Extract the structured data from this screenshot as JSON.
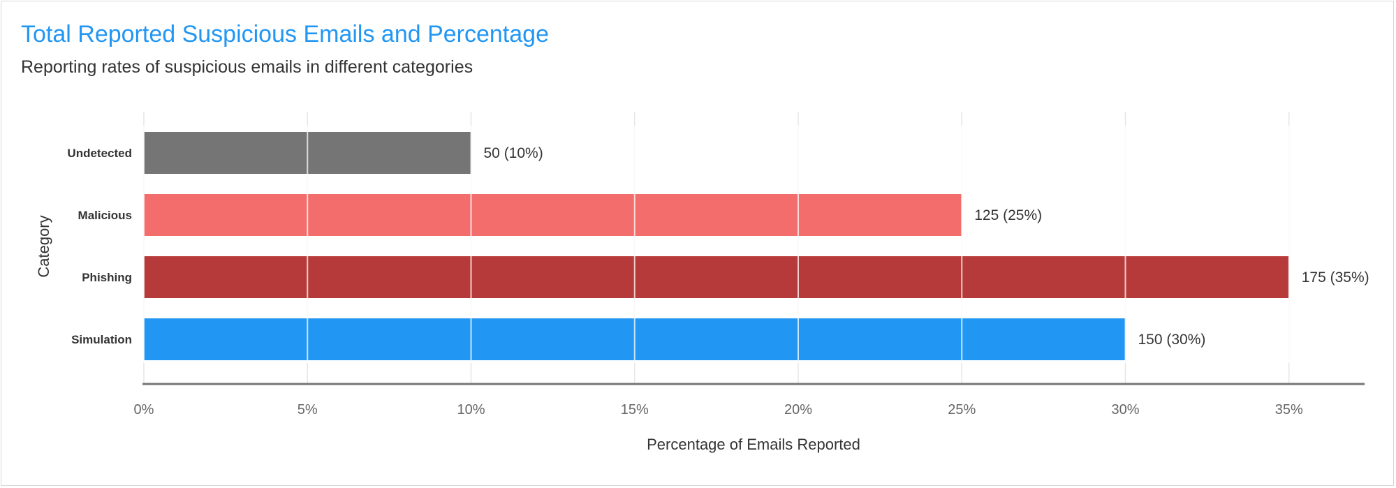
{
  "chart_data": {
    "type": "bar",
    "orientation": "horizontal",
    "title": "Total Reported Suspicious Emails and Percentage",
    "subtitle": "Reporting rates of suspicious emails in different categories",
    "xlabel": "Percentage of Emails Reported",
    "ylabel": "Category",
    "categories": [
      "Undetected",
      "Malicious",
      "Phishing",
      "Simulation"
    ],
    "values": [
      10,
      25,
      35,
      30
    ],
    "counts": [
      50,
      125,
      175,
      150
    ],
    "data_labels": [
      "50 (10%)",
      "125 (25%)",
      "175 (35%)",
      "150 (30%)"
    ],
    "colors": [
      "#757575",
      "#f46d6d",
      "#b73a3a",
      "#2196f3"
    ],
    "xlim": [
      0,
      37.4
    ],
    "xticks": [
      0,
      5,
      10,
      15,
      20,
      25,
      30,
      35
    ],
    "xtick_labels": [
      "0%",
      "5%",
      "10%",
      "15%",
      "20%",
      "25%",
      "30%",
      "35%"
    ],
    "grid": true,
    "legend": "none"
  }
}
